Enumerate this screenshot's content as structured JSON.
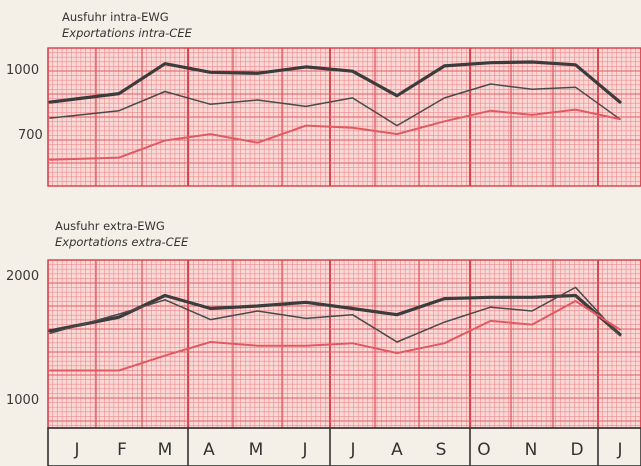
{
  "chart_data": [
    {
      "type": "line",
      "title": "Ausfuhr intra-EWG",
      "subtitle": "Exportations intra-CEE",
      "categories": [
        "J",
        "F",
        "M",
        "A",
        "M",
        "J",
        "J",
        "A",
        "S",
        "O",
        "N",
        "D",
        "J"
      ],
      "yticks": [
        700,
        1000
      ],
      "ylim": [
        570,
        1110
      ],
      "grid": true,
      "series": [
        {
          "values": [
            840,
            880,
            1020,
            980,
            975,
            1005,
            985,
            870,
            1010,
            1025,
            1028,
            1015,
            840
          ],
          "color": "#3c3c3c",
          "weight": "heavy"
        },
        {
          "values": [
            765,
            800,
            890,
            830,
            850,
            820,
            860,
            730,
            860,
            925,
            900,
            910,
            760
          ],
          "color": "#4a4a4a",
          "weight": "thin"
        },
        {
          "values": [
            570,
            580,
            660,
            690,
            650,
            730,
            720,
            690,
            750,
            800,
            780,
            805,
            760
          ],
          "color": "#e05a62",
          "weight": "medium"
        }
      ]
    },
    {
      "type": "line",
      "title": "Ausfuhr extra-EWG",
      "subtitle": "Exportations extra-CEE",
      "categories": [
        "J",
        "F",
        "M",
        "A",
        "M",
        "J",
        "J",
        "A",
        "S",
        "O",
        "N",
        "D",
        "J"
      ],
      "yticks": [
        1000,
        2000
      ],
      "ylim": [
        850,
        2050
      ],
      "grid": true,
      "series": [
        {
          "values": [
            1550,
            1660,
            1835,
            1730,
            1750,
            1780,
            1730,
            1680,
            1810,
            1820,
            1820,
            1835,
            1520
          ],
          "color": "#3c3c3c",
          "weight": "heavy"
        },
        {
          "values": [
            1530,
            1685,
            1800,
            1640,
            1710,
            1650,
            1680,
            1460,
            1620,
            1740,
            1710,
            1900,
            1510
          ],
          "color": "#4a4a4a",
          "weight": "thin"
        },
        {
          "values": [
            1230,
            1230,
            1350,
            1460,
            1430,
            1430,
            1450,
            1370,
            1450,
            1630,
            1600,
            1790,
            1560
          ],
          "color": "#e05a62",
          "weight": "medium"
        }
      ]
    }
  ],
  "months": [
    "J",
    "F",
    "M",
    "A",
    "M",
    "J",
    "J",
    "A",
    "S",
    "O",
    "N",
    "D",
    "J"
  ]
}
